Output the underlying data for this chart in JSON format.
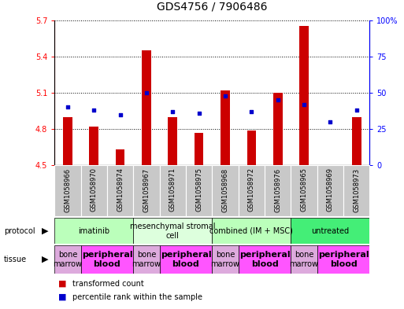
{
  "title": "GDS4756 / 7906486",
  "samples": [
    "GSM1058966",
    "GSM1058970",
    "GSM1058974",
    "GSM1058967",
    "GSM1058971",
    "GSM1058975",
    "GSM1058968",
    "GSM1058972",
    "GSM1058976",
    "GSM1058965",
    "GSM1058969",
    "GSM1058973"
  ],
  "bar_values": [
    4.9,
    4.82,
    4.63,
    5.45,
    4.9,
    4.77,
    5.12,
    4.79,
    5.1,
    5.65,
    4.5,
    4.9
  ],
  "dot_values": [
    40,
    38,
    35,
    50,
    37,
    36,
    48,
    37,
    45,
    42,
    30,
    38
  ],
  "ylim": [
    4.5,
    5.7
  ],
  "y2lim": [
    0,
    100
  ],
  "yticks": [
    4.5,
    4.8,
    5.1,
    5.4,
    5.7
  ],
  "y2ticks": [
    0,
    25,
    50,
    75,
    100
  ],
  "bar_color": "#cc0000",
  "dot_color": "#0000cc",
  "bar_bottom": 4.5,
  "bar_width": 0.35,
  "protocols": [
    {
      "label": "imatinib",
      "start": 0,
      "end": 3,
      "color": "#bbffbb"
    },
    {
      "label": "mesenchymal stromal\ncell",
      "start": 3,
      "end": 6,
      "color": "#ddffdd"
    },
    {
      "label": "combined (IM + MSC)",
      "start": 6,
      "end": 9,
      "color": "#bbffbb"
    },
    {
      "label": "untreated",
      "start": 9,
      "end": 12,
      "color": "#44ee77"
    }
  ],
  "tissues": [
    {
      "label": "bone\nmarrow",
      "start": 0,
      "end": 1,
      "bold": false
    },
    {
      "label": "peripheral\nblood",
      "start": 1,
      "end": 3,
      "bold": true
    },
    {
      "label": "bone\nmarrow",
      "start": 3,
      "end": 4,
      "bold": false
    },
    {
      "label": "peripheral\nblood",
      "start": 4,
      "end": 6,
      "bold": true
    },
    {
      "label": "bone\nmarrow",
      "start": 6,
      "end": 7,
      "bold": false
    },
    {
      "label": "peripheral\nblood",
      "start": 7,
      "end": 9,
      "bold": true
    },
    {
      "label": "bone\nmarrow",
      "start": 9,
      "end": 10,
      "bold": false
    },
    {
      "label": "peripheral\nblood",
      "start": 10,
      "end": 12,
      "bold": true
    }
  ],
  "tissue_bone_color": "#ddaadd",
  "tissue_blood_color": "#ff55ff",
  "legend_transformed": "transformed count",
  "legend_percentile": "percentile rank within the sample",
  "protocol_label": "protocol",
  "tissue_label": "tissue",
  "sample_bg_color": "#c8c8c8",
  "grid_color": "black",
  "grid_style": "dotted",
  "grid_lw": 0.7,
  "title_fontsize": 10,
  "tick_fontsize": 7,
  "sample_fontsize": 6,
  "proto_fontsize": 7,
  "tissue_fontsize": 7,
  "legend_fontsize": 7
}
